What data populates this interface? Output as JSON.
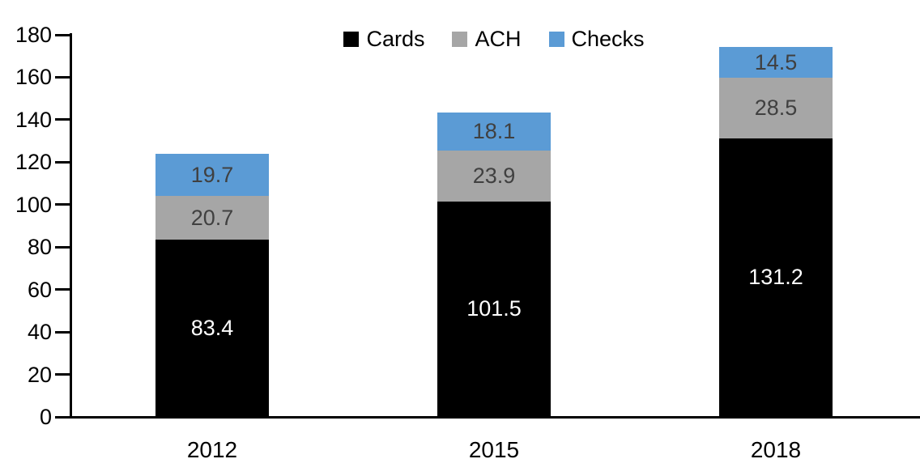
{
  "chart_data": {
    "type": "bar",
    "stacked": true,
    "title": "",
    "xlabel": "",
    "ylabel": "",
    "categories": [
      "2012",
      "2015",
      "2018"
    ],
    "series": [
      {
        "name": "Cards",
        "color": "#000000",
        "label_color": "#ffffff",
        "values": [
          83.4,
          101.5,
          131.2
        ]
      },
      {
        "name": "ACH",
        "color": "#a6a6a6",
        "label_color": "#404040",
        "values": [
          20.7,
          23.9,
          28.5
        ]
      },
      {
        "name": "Checks",
        "color": "#5b9bd5",
        "label_color": "#404040",
        "values": [
          19.7,
          18.1,
          14.5
        ]
      }
    ],
    "ylim": [
      0,
      180
    ],
    "ytick_step": 20,
    "yticks": [
      0,
      20,
      40,
      60,
      80,
      100,
      120,
      140,
      160,
      180
    ],
    "legend_position": "top",
    "grid": false,
    "axis_color": "#000000"
  }
}
